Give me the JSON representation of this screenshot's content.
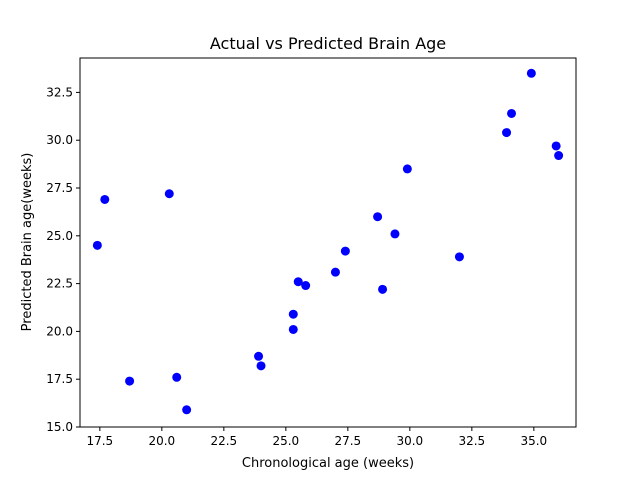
{
  "chart_data": {
    "type": "scatter",
    "title": "Actual vs Predicted Brain Age",
    "xlabel": "Chronological age (weeks)",
    "ylabel": "Predicted Brain age(weeks)",
    "xlim": [
      16.7,
      36.7
    ],
    "ylim": [
      15.0,
      34.3
    ],
    "xticks": [
      17.5,
      20.0,
      22.5,
      25.0,
      27.5,
      30.0,
      32.5,
      35.0
    ],
    "xtick_labels": [
      "17.5",
      "20.0",
      "22.5",
      "25.0",
      "27.5",
      "30.0",
      "32.5",
      "35.0"
    ],
    "yticks": [
      15.0,
      17.5,
      20.0,
      22.5,
      25.0,
      27.5,
      30.0,
      32.5
    ],
    "ytick_labels": [
      "15.0",
      "17.5",
      "20.0",
      "22.5",
      "25.0",
      "27.5",
      "30.0",
      "32.5"
    ],
    "grid": false,
    "marker_color": "#0000ff",
    "points": [
      {
        "x": 17.4,
        "y": 24.5
      },
      {
        "x": 17.7,
        "y": 26.9
      },
      {
        "x": 18.7,
        "y": 17.4
      },
      {
        "x": 20.3,
        "y": 27.2
      },
      {
        "x": 20.6,
        "y": 17.6
      },
      {
        "x": 21.0,
        "y": 15.9
      },
      {
        "x": 23.9,
        "y": 18.7
      },
      {
        "x": 24.0,
        "y": 18.2
      },
      {
        "x": 25.3,
        "y": 20.9
      },
      {
        "x": 25.3,
        "y": 20.1
      },
      {
        "x": 25.5,
        "y": 22.6
      },
      {
        "x": 25.8,
        "y": 22.4
      },
      {
        "x": 27.0,
        "y": 23.1
      },
      {
        "x": 27.4,
        "y": 24.2
      },
      {
        "x": 28.7,
        "y": 26.0
      },
      {
        "x": 28.9,
        "y": 22.2
      },
      {
        "x": 29.4,
        "y": 25.1
      },
      {
        "x": 29.9,
        "y": 28.5
      },
      {
        "x": 32.0,
        "y": 23.9
      },
      {
        "x": 33.9,
        "y": 30.4
      },
      {
        "x": 34.1,
        "y": 31.4
      },
      {
        "x": 34.9,
        "y": 33.5
      },
      {
        "x": 35.9,
        "y": 29.7
      },
      {
        "x": 36.0,
        "y": 29.2
      }
    ]
  }
}
